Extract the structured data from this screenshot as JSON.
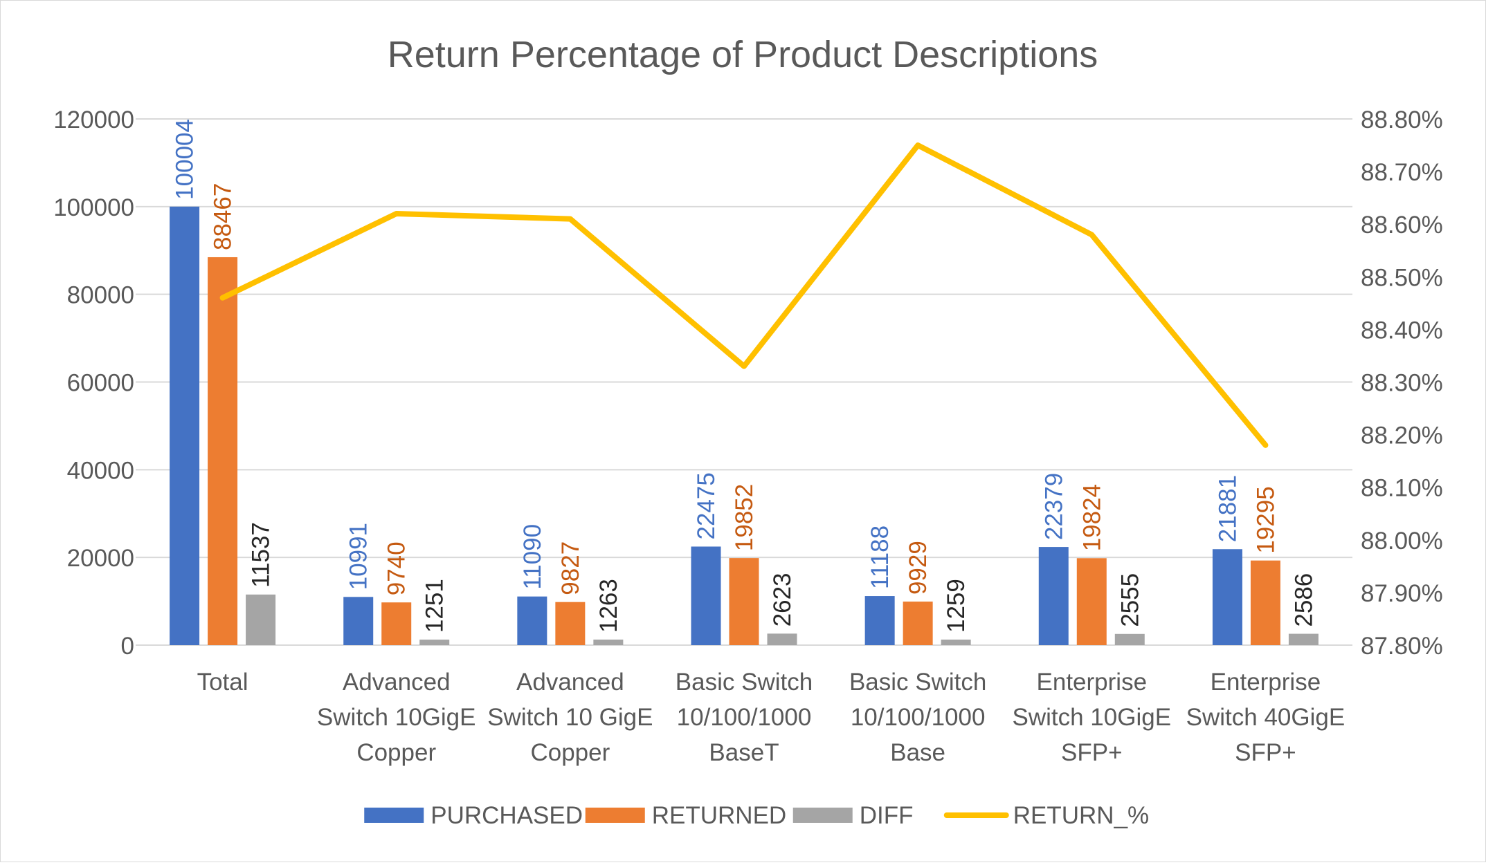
{
  "chart_data": {
    "type": "bar",
    "title": "Return Percentage of Product Descriptions",
    "categories": [
      [
        "Total"
      ],
      [
        "Advanced",
        "Switch 10GigE",
        "Copper"
      ],
      [
        "Advanced",
        "Switch 10 GigE",
        "Copper"
      ],
      [
        "Basic Switch",
        "10/100/1000",
        "BaseT"
      ],
      [
        "Basic Switch",
        "10/100/1000",
        "Base"
      ],
      [
        "Enterprise",
        "Switch 10GigE",
        "SFP+"
      ],
      [
        "Enterprise",
        "Switch 40GigE",
        "SFP+"
      ]
    ],
    "series": [
      {
        "name": "PURCHASED",
        "type": "bar",
        "axis": "left",
        "color": "#4472c4",
        "label_color": "#4472c4",
        "values": [
          100004,
          10991,
          11090,
          22475,
          11188,
          22379,
          21881
        ]
      },
      {
        "name": "RETURNED",
        "type": "bar",
        "axis": "left",
        "color": "#ed7d31",
        "label_color": "#c55a11",
        "values": [
          88467,
          9740,
          9827,
          19852,
          9929,
          19824,
          19295
        ]
      },
      {
        "name": "DIFF",
        "type": "bar",
        "axis": "left",
        "color": "#a5a5a5",
        "label_color": "#262626",
        "values": [
          11537,
          1251,
          1263,
          2623,
          1259,
          2555,
          2586
        ]
      },
      {
        "name": "RETURN_%",
        "type": "line",
        "axis": "right",
        "color": "#ffc000",
        "values": [
          88.46,
          88.62,
          88.61,
          88.33,
          88.75,
          88.58,
          88.18
        ]
      }
    ],
    "y_left": {
      "min": 0,
      "max": 120000,
      "ticks": [
        0,
        20000,
        40000,
        60000,
        80000,
        100000,
        120000
      ],
      "tick_labels": [
        "0",
        "20000",
        "40000",
        "60000",
        "80000",
        "100000",
        "120000"
      ]
    },
    "y_right": {
      "min": 87.8,
      "max": 88.8,
      "ticks": [
        87.8,
        87.9,
        88.0,
        88.1,
        88.2,
        88.3,
        88.4,
        88.5,
        88.6,
        88.7,
        88.8
      ],
      "tick_labels": [
        "87.80%",
        "87.90%",
        "88.00%",
        "88.10%",
        "88.20%",
        "88.30%",
        "88.40%",
        "88.50%",
        "88.60%",
        "88.70%",
        "88.80%"
      ]
    },
    "grid": true,
    "legend_position": "bottom",
    "data_labels": "rotated"
  }
}
